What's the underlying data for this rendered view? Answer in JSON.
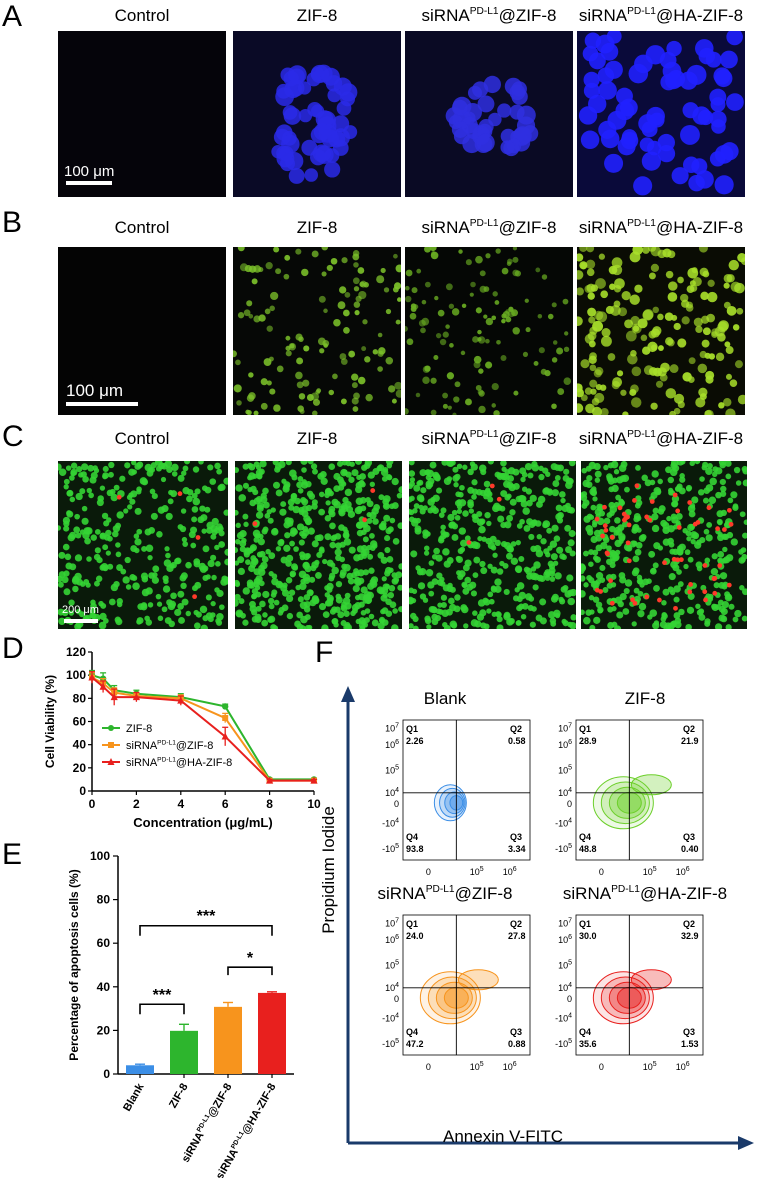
{
  "panel_labels": {
    "a": "A",
    "b": "B",
    "c": "C",
    "d": "D",
    "e": "E",
    "f": "F"
  },
  "image_groups": [
    "Control",
    "ZIF-8",
    "siRNA@ZIF-8",
    "siRNA@HA-ZIF-8"
  ],
  "group_titles": {
    "control": "Control",
    "zif8": "ZIF-8",
    "sirna_base": "siRNA",
    "sup": "PD-L1",
    "sirna_zif_suffix": "@ZIF-8",
    "sirna_ha_suffix": "@HA-ZIF-8"
  },
  "scalebars": {
    "a": "100 μm",
    "b": "100 μm",
    "c": "200 μm"
  },
  "colors": {
    "green": "#2db52d",
    "orange": "#f7941d",
    "red": "#e8201e",
    "blue": "#3b8ee6",
    "nucleus_blue": "#2a2aff",
    "fitc_green": "#8ee03a",
    "live_green": "#34d434",
    "dead_red": "#ff3a2a"
  },
  "chart_data": [
    {
      "type": "line",
      "panel": "D",
      "xlabel": "Concentration (μg/mL)",
      "ylabel": "Cell Viability (%)",
      "xlim": [
        0,
        10
      ],
      "ylim": [
        0,
        120
      ],
      "xticks": [
        "0",
        "2",
        "4",
        "6",
        "8",
        "10"
      ],
      "yticks": [
        "0",
        "20",
        "40",
        "60",
        "80",
        "100",
        "120"
      ],
      "x": [
        0,
        0.5,
        1,
        2,
        4,
        6,
        8,
        10
      ],
      "legend_placement": "center-left",
      "series": [
        {
          "name": "ZIF-8",
          "values": [
            100,
            97,
            87,
            84,
            81,
            73,
            10,
            10
          ],
          "err": [
            4,
            5,
            4,
            3,
            3,
            2,
            1,
            1
          ],
          "color": "#2db52d",
          "marker": "circle"
        },
        {
          "name": "siRNA@ZIF-8",
          "values": [
            98,
            93,
            85,
            82,
            80,
            63,
            9,
            9
          ],
          "err": [
            4,
            4,
            4,
            3,
            3,
            4,
            1,
            1
          ],
          "color": "#f7941d",
          "marker": "square"
        },
        {
          "name": "siRNA@HA-ZIF-8",
          "values": [
            98,
            90,
            81,
            81,
            78,
            47,
            9,
            9
          ],
          "err": [
            5,
            5,
            7,
            4,
            4,
            8,
            1,
            1
          ],
          "color": "#e8201e",
          "marker": "triangle"
        }
      ]
    },
    {
      "type": "bar",
      "panel": "E",
      "ylabel": "Percentage of apoptosis cells (%)",
      "ylim": [
        0,
        100
      ],
      "yticks": [
        "0",
        "20",
        "40",
        "60",
        "80",
        "100"
      ],
      "categories": [
        "Blank",
        "ZIF-8",
        "siRNA@ZIF-8",
        "siRNA@HA-ZIF-8"
      ],
      "values": [
        4.0,
        19.8,
        30.8,
        37.2
      ],
      "err": [
        0.5,
        3,
        2,
        0.5
      ],
      "colors": [
        "#3b8ee6",
        "#2db52d",
        "#f7941d",
        "#e8201e"
      ],
      "significance": [
        {
          "from": "Blank",
          "to": "ZIF-8",
          "label": "***"
        },
        {
          "from": "siRNA@ZIF-8",
          "to": "siRNA@HA-ZIF-8",
          "label": "*"
        },
        {
          "from": "Blank",
          "to": "siRNA@HA-ZIF-8",
          "label": "***"
        }
      ]
    },
    {
      "type": "scatter",
      "panel": "F",
      "xlabel": "Annexin V-FITC",
      "ylabel": "Propidium Iodide",
      "xticks": [
        "0",
        "10^5",
        "10^6"
      ],
      "yticks": [
        "10^7",
        "10^6",
        "10^5",
        "10^4",
        "0",
        "-10^4",
        "-10^5"
      ],
      "quadrant_names": [
        "Q1",
        "Q2",
        "Q3",
        "Q4"
      ],
      "plots": [
        {
          "name": "Blank",
          "color": "#3b8ee6",
          "Q1": "2.26",
          "Q2": "0.58",
          "Q3": "3.34",
          "Q4": "93.8"
        },
        {
          "name": "ZIF-8",
          "color": "#6ccf2a",
          "Q1": "28.9",
          "Q2": "21.9",
          "Q3": "0.40",
          "Q4": "48.8"
        },
        {
          "name": "siRNA@ZIF-8",
          "color": "#f7941d",
          "Q1": "24.0",
          "Q2": "27.8",
          "Q3": "0.88",
          "Q4": "47.2"
        },
        {
          "name": "siRNA@HA-ZIF-8",
          "color": "#e8201e",
          "Q1": "30.0",
          "Q2": "32.9",
          "Q3": "1.53",
          "Q4": "35.6"
        }
      ]
    }
  ]
}
